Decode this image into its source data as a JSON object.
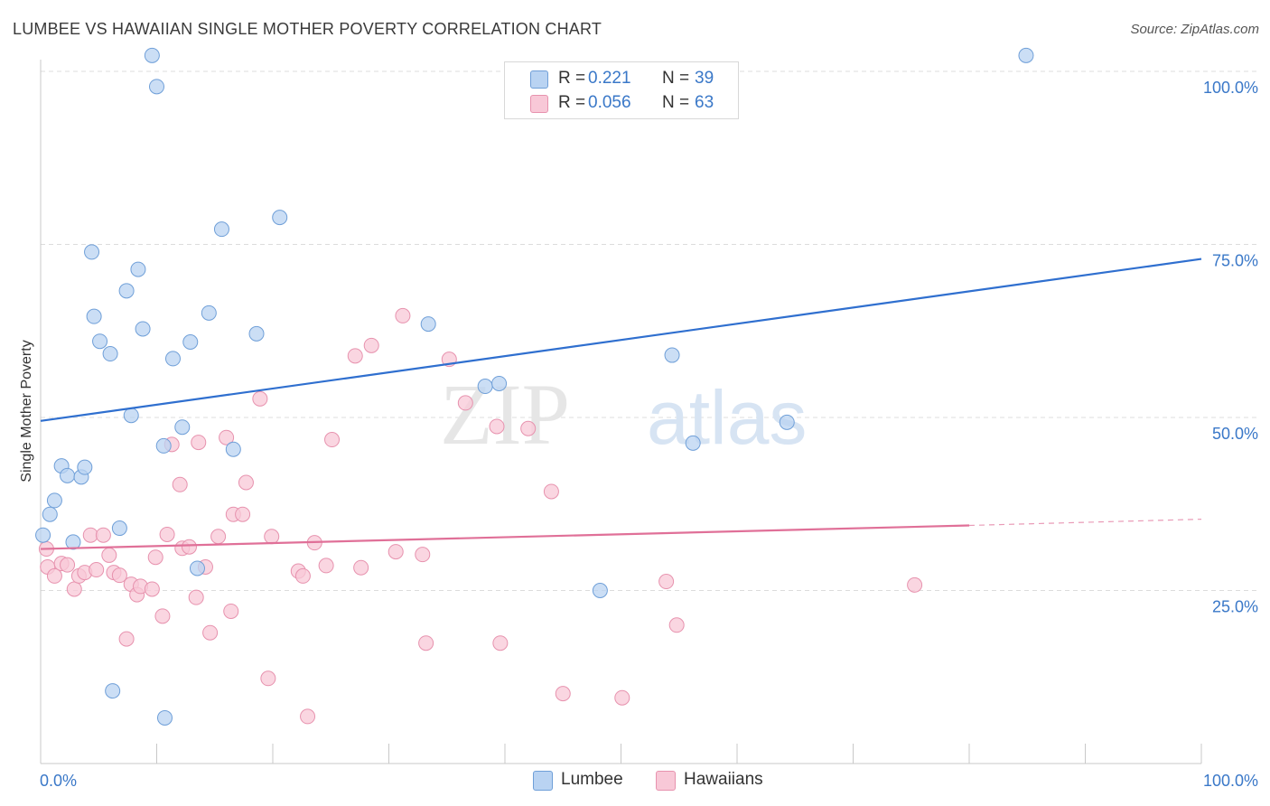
{
  "title": "LUMBEE VS HAWAIIAN SINGLE MOTHER POVERTY CORRELATION CHART",
  "source": "Source: ZipAtlas.com",
  "watermark": {
    "part1": "ZIP",
    "part2": "atlas"
  },
  "legend": {
    "lumbee": {
      "r_label": "R =",
      "r_value": "0.221",
      "n_label": "N =",
      "n_value": "39"
    },
    "hawaiians": {
      "r_label": "R =",
      "r_value": "0.056",
      "n_label": "N =",
      "n_value": "63"
    }
  },
  "colors": {
    "lumbee_fill": "#b9d3f2",
    "lumbee_stroke": "#6f9fd8",
    "lumbee_line": "#2f6fcf",
    "hawaiians_fill": "#f8c8d7",
    "hawaiians_stroke": "#e792ae",
    "hawaiians_line": "#e07098",
    "value_text": "#3a78c8",
    "grid": "#dcdcdc"
  },
  "chart_data": {
    "type": "scatter",
    "title": "LUMBEE VS HAWAIIAN SINGLE MOTHER POVERTY CORRELATION CHART",
    "xlabel": "",
    "ylabel": "Single Mother Poverty",
    "xlim": [
      0,
      100
    ],
    "ylim": [
      0,
      100
    ],
    "x_tick_labels": [
      "0.0%",
      "100.0%"
    ],
    "y_ticks": [
      {
        "value": 25,
        "label": "25.0%"
      },
      {
        "value": 50,
        "label": "50.0%"
      },
      {
        "value": 75,
        "label": "75.0%"
      },
      {
        "value": 100,
        "label": "100.0%"
      }
    ],
    "grid": true,
    "legend_position": "top-center",
    "series": [
      {
        "name": "Lumbee",
        "r": 0.221,
        "n": 39,
        "trend": {
          "x": [
            0,
            100
          ],
          "y": [
            49.5,
            72.9
          ]
        },
        "points": [
          {
            "x": 0.2,
            "y": 33
          },
          {
            "x": 0.8,
            "y": 36
          },
          {
            "x": 1.2,
            "y": 38
          },
          {
            "x": 1.8,
            "y": 43
          },
          {
            "x": 2.3,
            "y": 41.6
          },
          {
            "x": 2.8,
            "y": 32
          },
          {
            "x": 3.5,
            "y": 41.4
          },
          {
            "x": 3.8,
            "y": 42.8
          },
          {
            "x": 4.4,
            "y": 73.9
          },
          {
            "x": 4.6,
            "y": 64.6
          },
          {
            "x": 5.1,
            "y": 61
          },
          {
            "x": 6.0,
            "y": 59.2
          },
          {
            "x": 6.2,
            "y": 10.5
          },
          {
            "x": 6.8,
            "y": 34
          },
          {
            "x": 7.4,
            "y": 68.3
          },
          {
            "x": 7.8,
            "y": 50.3
          },
          {
            "x": 8.4,
            "y": 71.4
          },
          {
            "x": 8.8,
            "y": 62.8
          },
          {
            "x": 9.6,
            "y": 102.3
          },
          {
            "x": 10.0,
            "y": 97.8
          },
          {
            "x": 10.6,
            "y": 45.9
          },
          {
            "x": 10.7,
            "y": 6.6
          },
          {
            "x": 11.4,
            "y": 58.5
          },
          {
            "x": 12.2,
            "y": 48.6
          },
          {
            "x": 12.9,
            "y": 60.9
          },
          {
            "x": 13.5,
            "y": 28.2
          },
          {
            "x": 14.5,
            "y": 65.1
          },
          {
            "x": 15.6,
            "y": 77.2
          },
          {
            "x": 16.6,
            "y": 45.4
          },
          {
            "x": 18.6,
            "y": 62.1
          },
          {
            "x": 20.6,
            "y": 78.9
          },
          {
            "x": 33.4,
            "y": 63.5
          },
          {
            "x": 38.3,
            "y": 54.5
          },
          {
            "x": 39.5,
            "y": 54.9
          },
          {
            "x": 48.2,
            "y": 25
          },
          {
            "x": 54.4,
            "y": 59
          },
          {
            "x": 56.2,
            "y": 46.3
          },
          {
            "x": 64.3,
            "y": 49.3
          },
          {
            "x": 84.9,
            "y": 102.3
          }
        ]
      },
      {
        "name": "Hawaiians",
        "r": 0.056,
        "n": 63,
        "trend": {
          "x": [
            0,
            80
          ],
          "y": [
            31,
            34.4
          ]
        },
        "trend_dashed": {
          "x": [
            80,
            100
          ],
          "y": [
            34.4,
            35.3
          ]
        },
        "points": [
          {
            "x": 0.5,
            "y": 31
          },
          {
            "x": 0.6,
            "y": 28.4
          },
          {
            "x": 1.2,
            "y": 27.1
          },
          {
            "x": 1.8,
            "y": 28.9
          },
          {
            "x": 2.3,
            "y": 28.7
          },
          {
            "x": 2.9,
            "y": 25.2
          },
          {
            "x": 3.3,
            "y": 27.1
          },
          {
            "x": 3.8,
            "y": 27.6
          },
          {
            "x": 4.3,
            "y": 33
          },
          {
            "x": 4.8,
            "y": 28
          },
          {
            "x": 5.4,
            "y": 33
          },
          {
            "x": 5.9,
            "y": 30.1
          },
          {
            "x": 6.3,
            "y": 27.6
          },
          {
            "x": 6.8,
            "y": 27.2
          },
          {
            "x": 7.4,
            "y": 18
          },
          {
            "x": 7.8,
            "y": 25.9
          },
          {
            "x": 8.3,
            "y": 24.4
          },
          {
            "x": 8.6,
            "y": 25.6
          },
          {
            "x": 9.6,
            "y": 25.2
          },
          {
            "x": 9.9,
            "y": 29.8
          },
          {
            "x": 10.5,
            "y": 21.3
          },
          {
            "x": 10.9,
            "y": 33.1
          },
          {
            "x": 11.3,
            "y": 46.1
          },
          {
            "x": 12.0,
            "y": 40.3
          },
          {
            "x": 12.2,
            "y": 31.1
          },
          {
            "x": 12.8,
            "y": 31.3
          },
          {
            "x": 13.4,
            "y": 24
          },
          {
            "x": 13.6,
            "y": 46.4
          },
          {
            "x": 14.2,
            "y": 28.4
          },
          {
            "x": 14.6,
            "y": 18.9
          },
          {
            "x": 15.3,
            "y": 32.8
          },
          {
            "x": 16.0,
            "y": 47.1
          },
          {
            "x": 16.4,
            "y": 22
          },
          {
            "x": 16.6,
            "y": 36
          },
          {
            "x": 17.4,
            "y": 36
          },
          {
            "x": 17.7,
            "y": 40.6
          },
          {
            "x": 18.9,
            "y": 52.7
          },
          {
            "x": 19.6,
            "y": 12.3
          },
          {
            "x": 19.9,
            "y": 32.8
          },
          {
            "x": 22.2,
            "y": 27.8
          },
          {
            "x": 22.6,
            "y": 27.1
          },
          {
            "x": 23.0,
            "y": 6.8
          },
          {
            "x": 23.6,
            "y": 31.9
          },
          {
            "x": 24.6,
            "y": 28.6
          },
          {
            "x": 25.1,
            "y": 46.8
          },
          {
            "x": 27.1,
            "y": 58.9
          },
          {
            "x": 27.6,
            "y": 28.3
          },
          {
            "x": 28.5,
            "y": 60.4
          },
          {
            "x": 30.6,
            "y": 30.6
          },
          {
            "x": 31.2,
            "y": 64.7
          },
          {
            "x": 32.9,
            "y": 30.2
          },
          {
            "x": 33.2,
            "y": 17.4
          },
          {
            "x": 35.2,
            "y": 58.4
          },
          {
            "x": 36.6,
            "y": 52.1
          },
          {
            "x": 39.3,
            "y": 48.7
          },
          {
            "x": 39.6,
            "y": 17.4
          },
          {
            "x": 42.0,
            "y": 48.4
          },
          {
            "x": 44.0,
            "y": 39.3
          },
          {
            "x": 45.0,
            "y": 10.1
          },
          {
            "x": 50.1,
            "y": 9.5
          },
          {
            "x": 53.9,
            "y": 26.3
          },
          {
            "x": 54.8,
            "y": 20
          },
          {
            "x": 75.3,
            "y": 25.8
          }
        ]
      }
    ]
  },
  "bottom_legend": [
    {
      "label": "Lumbee"
    },
    {
      "label": "Hawaiians"
    }
  ]
}
